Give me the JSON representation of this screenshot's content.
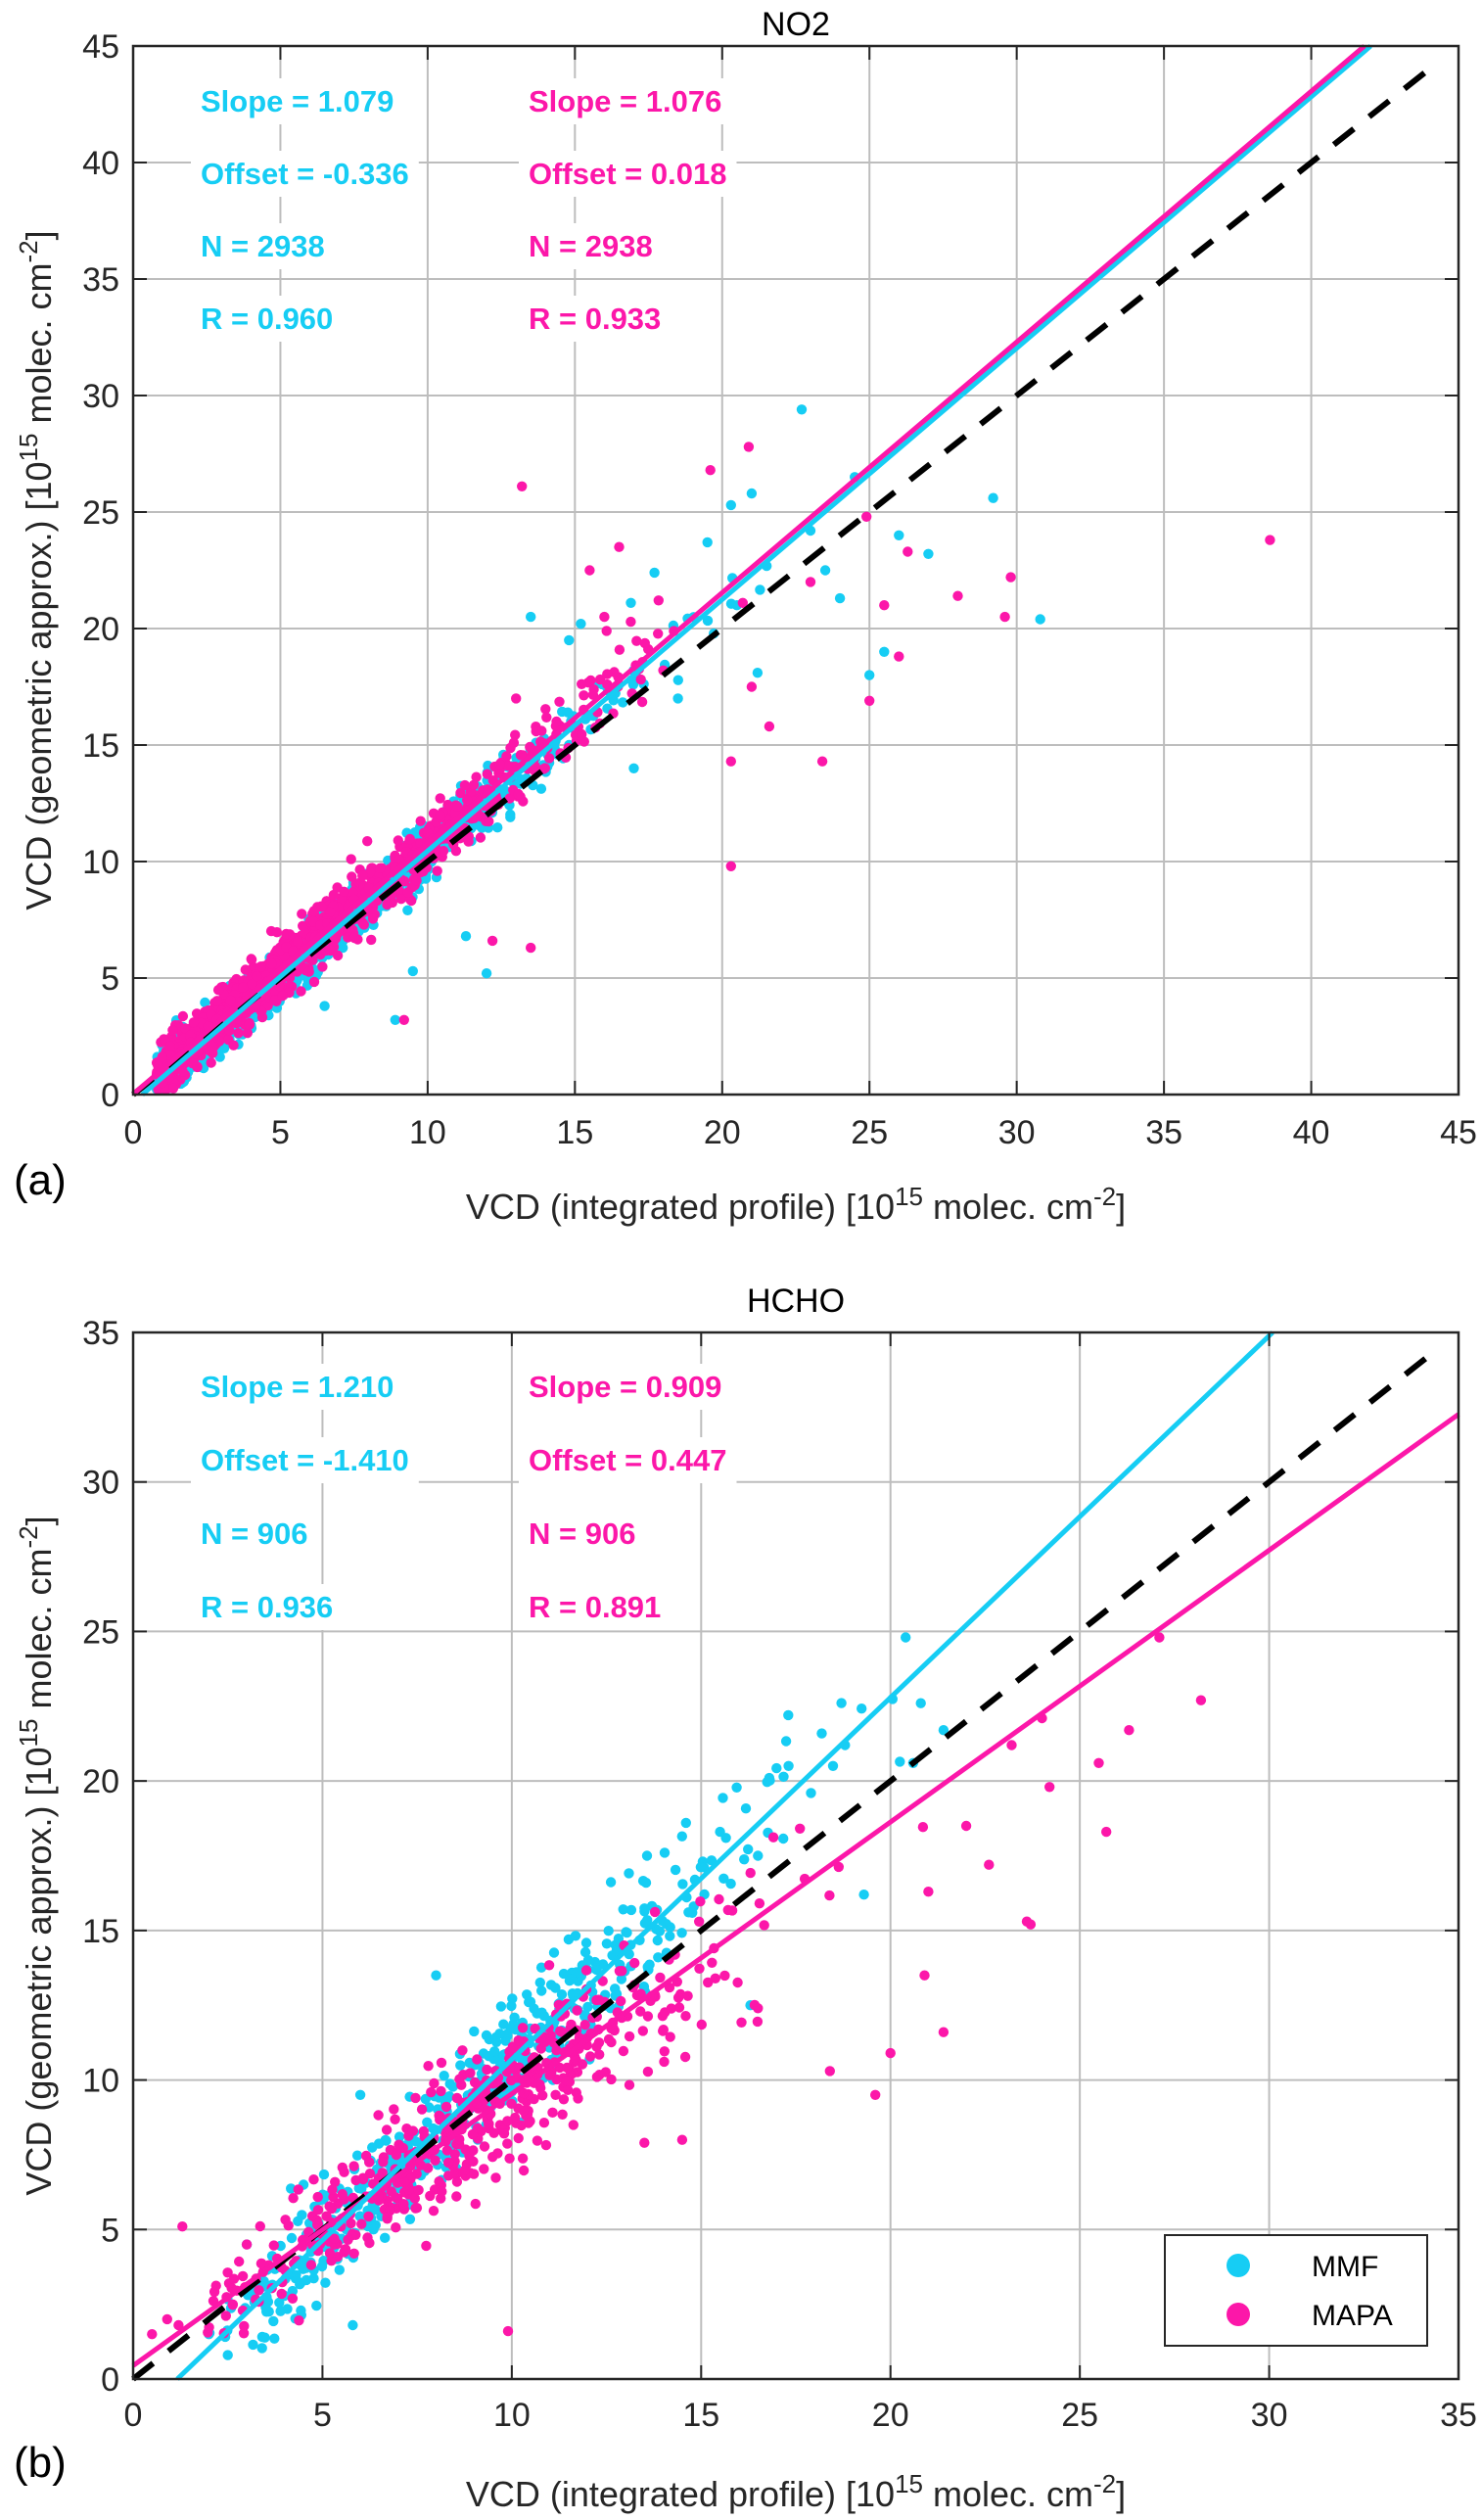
{
  "colors": {
    "mmf": "#16cdf4",
    "mapa": "#fc17a9",
    "one_to_one": "#000000"
  },
  "chart_data": [
    {
      "id": "a",
      "type": "scatter",
      "panel_label": "(a)",
      "title": "NO2",
      "xlabel_main": "VCD (integrated profile) [10",
      "xlabel_sup": "15",
      "xlabel_mid": " molec. cm",
      "xlabel_sup2": "-2",
      "xlabel_end": "]",
      "ylabel_main": "VCD (geometric approx.) [10",
      "ylabel_sup": "15",
      "ylabel_mid": " molec. cm",
      "ylabel_sup2": "-2",
      "ylabel_end": "]",
      "xlim": [
        0,
        45
      ],
      "ylim": [
        0,
        45
      ],
      "xticks": [
        "0",
        "5",
        "10",
        "15",
        "20",
        "25",
        "30",
        "35",
        "40",
        "45"
      ],
      "yticks": [
        "0",
        "5",
        "10",
        "15",
        "20",
        "25",
        "30",
        "35",
        "40",
        "45"
      ],
      "grid": true,
      "series": [
        {
          "name": "MMF",
          "slope": 1.079,
          "offset": -0.336,
          "n": 2938,
          "r": 0.96,
          "stats": [
            "Slope = 1.079",
            "Offset = -0.336",
            "N = 2938",
            "R = 0.960"
          ],
          "sample_points": [
            [
              22.7,
              29.4
            ],
            [
              21,
              25.8
            ],
            [
              20.3,
              25.3
            ],
            [
              23,
              24.2
            ],
            [
              29.2,
              25.6
            ],
            [
              30.8,
              20.4
            ],
            [
              26,
              24
            ],
            [
              27,
              23.2
            ],
            [
              25.5,
              19
            ],
            [
              24,
              21.3
            ],
            [
              23.5,
              22.5
            ],
            [
              20.5,
              21
            ],
            [
              19.5,
              23.7
            ],
            [
              17.7,
              22.4
            ],
            [
              16.9,
              21.1
            ],
            [
              15.2,
              20.2
            ],
            [
              14.8,
              19.5
            ],
            [
              21.2,
              18.1
            ],
            [
              25,
              18
            ],
            [
              17,
              14
            ],
            [
              18.5,
              17
            ],
            [
              13.5,
              20.5
            ],
            [
              24.5,
              26.5
            ],
            [
              14.8,
              15
            ],
            [
              8.9,
              3.2
            ],
            [
              9.5,
              5.3
            ],
            [
              6.5,
              3.8
            ],
            [
              11.3,
              6.8
            ],
            [
              12,
              5.2
            ]
          ]
        },
        {
          "name": "MAPA",
          "slope": 1.076,
          "offset": 0.018,
          "n": 2938,
          "r": 0.933,
          "stats": [
            "Slope = 1.076",
            "Offset = 0.018",
            "N = 2938",
            "R = 0.933"
          ],
          "sample_points": [
            [
              38.6,
              23.8
            ],
            [
              20.9,
              27.8
            ],
            [
              13.2,
              26.1
            ],
            [
              19.6,
              26.8
            ],
            [
              23,
              22
            ],
            [
              24.9,
              24.8
            ],
            [
              20.7,
              21.1
            ],
            [
              29.8,
              22.2
            ],
            [
              29.6,
              20.5
            ],
            [
              26.3,
              23.3
            ],
            [
              23.4,
              14.3
            ],
            [
              25.5,
              21
            ],
            [
              26,
              18.8
            ],
            [
              25,
              16.9
            ],
            [
              21,
              17.5
            ],
            [
              20.3,
              14.3
            ],
            [
              21.6,
              15.8
            ],
            [
              20.3,
              9.8
            ],
            [
              18,
              18.2
            ],
            [
              16,
              20.5
            ],
            [
              15.5,
              22.5
            ],
            [
              13.5,
              6.3
            ],
            [
              13,
              17
            ],
            [
              12.2,
              6.6
            ],
            [
              9.2,
              3.2
            ],
            [
              7.4,
              10.1
            ],
            [
              16.5,
              23.5
            ],
            [
              28,
              21.4
            ]
          ]
        }
      ],
      "one_to_one": "dashed 1:1 line"
    },
    {
      "id": "b",
      "type": "scatter",
      "panel_label": "(b)",
      "title": "HCHO",
      "xlabel_main": "VCD (integrated profile) [10",
      "xlabel_sup": "15",
      "xlabel_mid": " molec. cm",
      "xlabel_sup2": "-2",
      "xlabel_end": "]",
      "ylabel_main": "VCD (geometric approx.) [10",
      "ylabel_sup": "15",
      "ylabel_mid": " molec. cm",
      "ylabel_sup2": "-2",
      "ylabel_end": "]",
      "xlim": [
        0,
        35
      ],
      "ylim": [
        0,
        35
      ],
      "xticks": [
        "0",
        "5",
        "10",
        "15",
        "20",
        "25",
        "30",
        "35"
      ],
      "yticks": [
        "0",
        "5",
        "10",
        "15",
        "20",
        "25",
        "30",
        "35"
      ],
      "grid": true,
      "legend": {
        "placement": "bottom-right",
        "entries": [
          "MMF",
          "MAPA"
        ]
      },
      "series": [
        {
          "name": "MMF",
          "slope": 1.21,
          "offset": -1.41,
          "n": 906,
          "r": 0.936,
          "stats": [
            "Slope = 1.210",
            "Offset = -1.410",
            "N = 906",
            "R = 0.936"
          ],
          "sample_points": [
            [
              20.4,
              24.8
            ],
            [
              20.8,
              22.6
            ],
            [
              17.3,
              22.2
            ],
            [
              18.8,
              21.2
            ],
            [
              16.8,
              20.1
            ],
            [
              17.9,
              19.6
            ],
            [
              20.6,
              20.6
            ],
            [
              19.3,
              16.2
            ],
            [
              21.4,
              21.7
            ],
            [
              16.5,
              17.5
            ],
            [
              15.5,
              18.3
            ],
            [
              14.6,
              18.6
            ],
            [
              11.5,
              14.7
            ],
            [
              8,
              13.5
            ],
            [
              6,
              9.5
            ],
            [
              4.5,
              6.5
            ],
            [
              3,
              4.5
            ],
            [
              2,
              1.5
            ],
            [
              2.5,
              0.8
            ],
            [
              5.8,
              1.8
            ],
            [
              3.5,
              2.4
            ],
            [
              16.3,
              12.5
            ]
          ]
        },
        {
          "name": "MAPA",
          "slope": 0.909,
          "offset": 0.447,
          "n": 906,
          "r": 0.891,
          "stats": [
            "Slope = 0.909",
            "Offset = 0.447",
            "N = 906",
            "R = 0.891"
          ],
          "sample_points": [
            [
              27.1,
              24.8
            ],
            [
              28.2,
              22.7
            ],
            [
              24,
              22.1
            ],
            [
              23.2,
              21.2
            ],
            [
              26.3,
              21.7
            ],
            [
              24.2,
              19.8
            ],
            [
              25.5,
              20.6
            ],
            [
              25.7,
              18.3
            ],
            [
              22.6,
              17.2
            ],
            [
              23.6,
              15.3
            ],
            [
              23.7,
              15.2
            ],
            [
              21.4,
              11.6
            ],
            [
              20.9,
              13.5
            ],
            [
              20,
              10.9
            ],
            [
              19.6,
              9.5
            ],
            [
              21,
              16.3
            ],
            [
              22,
              18.5
            ],
            [
              18.4,
              10.3
            ],
            [
              16.5,
              12.4
            ],
            [
              13.5,
              7.9
            ],
            [
              10.3,
              10
            ],
            [
              9.9,
              1.6
            ],
            [
              14.5,
              8
            ],
            [
              0.9,
              2
            ],
            [
              0.5,
              1.5
            ],
            [
              1.2,
              1.8
            ],
            [
              1.3,
              5.1
            ],
            [
              3,
              4.5
            ]
          ]
        }
      ]
    }
  ],
  "legend": {
    "mmf_label": "MMF",
    "mapa_label": "MAPA"
  }
}
